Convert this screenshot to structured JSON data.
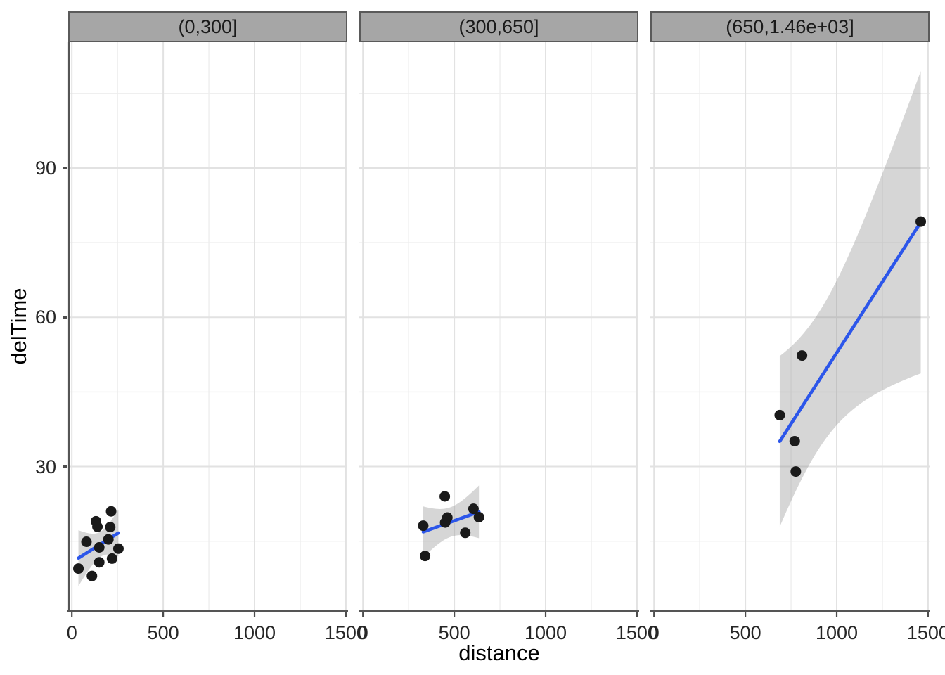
{
  "chart_data": {
    "type": "scatter",
    "title": "",
    "xlabel": "distance",
    "ylabel": "delTime",
    "smooth_method": "lm",
    "ci_level": 0.95,
    "legend": "none",
    "grid": "on",
    "x_ticks": [
      0,
      500,
      1000,
      1500
    ],
    "y_ticks": [
      30,
      60,
      90
    ],
    "x_minor_ticks": [
      250,
      750,
      1250
    ],
    "y_minor_ticks": [
      15,
      45,
      75,
      105
    ],
    "xlim": [
      -20,
      1508
    ],
    "ylim": [
      1.1,
      115.3
    ],
    "facets": [
      {
        "label": "(0,300]",
        "points": [
          [
            36,
            9.5
          ],
          [
            80,
            14.88
          ],
          [
            110,
            8.0
          ],
          [
            132,
            19.0
          ],
          [
            140,
            17.9
          ],
          [
            150,
            13.75
          ],
          [
            150,
            10.75
          ],
          [
            200,
            15.35
          ],
          [
            210,
            17.83
          ],
          [
            215,
            21.0
          ],
          [
            220,
            11.5
          ],
          [
            255,
            13.5
          ]
        ]
      },
      {
        "label": "(300,650]",
        "points": [
          [
            330,
            18.11
          ],
          [
            340,
            12.03
          ],
          [
            448,
            24.0
          ],
          [
            450,
            18.75
          ],
          [
            462,
            19.75
          ],
          [
            560,
            16.68
          ],
          [
            605,
            21.5
          ],
          [
            635,
            19.83
          ]
        ]
      },
      {
        "label": "(650,1.46e+03]",
        "points": [
          [
            688,
            40.33
          ],
          [
            770,
            35.1
          ],
          [
            776,
            29.0
          ],
          [
            810,
            52.32
          ],
          [
            1460,
            79.24
          ]
        ]
      }
    ],
    "colors": {
      "background": "#FFFFFF",
      "point": "#1A1A1A",
      "smooth_line": "#2C56EA",
      "confidence_band": "rgba(153,153,153,0.40)",
      "grid_major": "#E2E2E2",
      "grid_minor": "#EDEDED",
      "axis_line": "#555555",
      "tick_mark": "#4D4D4D",
      "tick_label": "#262626",
      "axis_title": "#000000",
      "strip_fill": "#A6A6A6",
      "strip_border": "#5A5A5A",
      "strip_text": "#1A1A1A"
    }
  }
}
